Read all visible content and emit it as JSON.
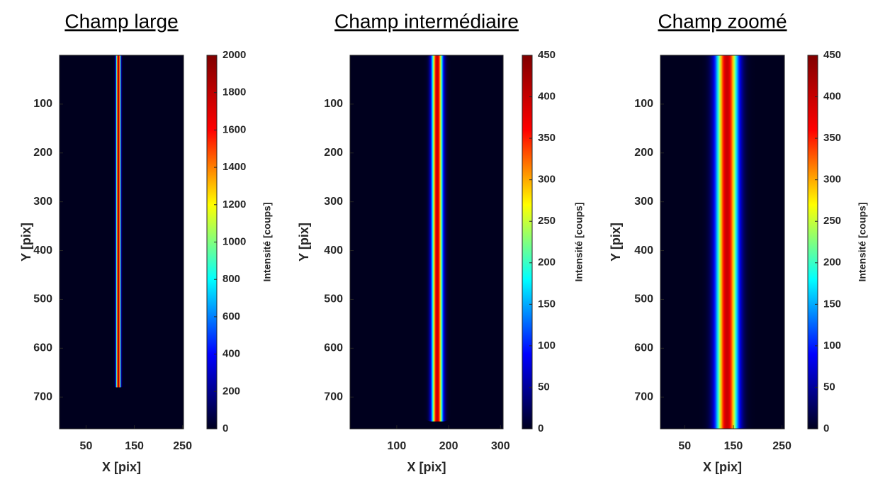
{
  "chart_data": [
    {
      "type": "image",
      "title": "Champ large",
      "xlabel": "X [pix]",
      "ylabel": "Y [pix]",
      "xlim": [
        -5,
        252
      ],
      "xticks": [
        50,
        150,
        250
      ],
      "ylim": [
        765,
        0
      ],
      "yticks": [
        100,
        200,
        300,
        400,
        500,
        600,
        700
      ],
      "colormap": [
        "#00001e",
        "#0000ff",
        "#00ffff",
        "#ffff00",
        "#ff0000",
        "#800000"
      ],
      "colorbar": {
        "label": "Intensité [coups]",
        "lim": [
          0,
          2000
        ],
        "ticks": [
          0,
          200,
          400,
          600,
          800,
          1000,
          1200,
          1400,
          1600,
          1800,
          2000
        ]
      },
      "beam": {
        "x": 117,
        "sigma": 3,
        "peak": 1900,
        "y_end": 680
      }
    },
    {
      "type": "image",
      "title": "Champ intermédiaire",
      "xlabel": "X [pix]",
      "ylabel": "Y [pix]",
      "xlim": [
        10,
        305
      ],
      "xticks": [
        100,
        200,
        300
      ],
      "ylim": [
        765,
        0
      ],
      "yticks": [
        100,
        200,
        300,
        400,
        500,
        600,
        700
      ],
      "colormap": [
        "#00001e",
        "#0000ff",
        "#00ffff",
        "#ffff00",
        "#ff0000",
        "#800000"
      ],
      "colorbar": {
        "label": "Intensité [coups]",
        "lim": [
          0,
          450
        ],
        "ticks": [
          0,
          50,
          100,
          150,
          200,
          250,
          300,
          350,
          400,
          450
        ]
      },
      "beam": {
        "x": 178,
        "sigma": 7,
        "peak": 400,
        "y_end": 750
      }
    },
    {
      "type": "image",
      "title": "Champ zoomé",
      "xlabel": "X [pix]",
      "ylabel": "Y [pix]",
      "xlim": [
        0,
        255
      ],
      "xticks": [
        50,
        150,
        250
      ],
      "ylim": [
        765,
        0
      ],
      "yticks": [
        100,
        200,
        300,
        400,
        500,
        600,
        700
      ],
      "colormap": [
        "#00001e",
        "#0000ff",
        "#00ffff",
        "#ffff00",
        "#ff0000",
        "#800000"
      ],
      "colorbar": {
        "label": "Intensité [coups]",
        "lim": [
          0,
          450
        ],
        "ticks": [
          0,
          50,
          100,
          150,
          200,
          250,
          300,
          350,
          400,
          450
        ]
      },
      "beam": {
        "x": 137,
        "sigma": 15,
        "peak": 400,
        "y_end": 765
      }
    }
  ]
}
